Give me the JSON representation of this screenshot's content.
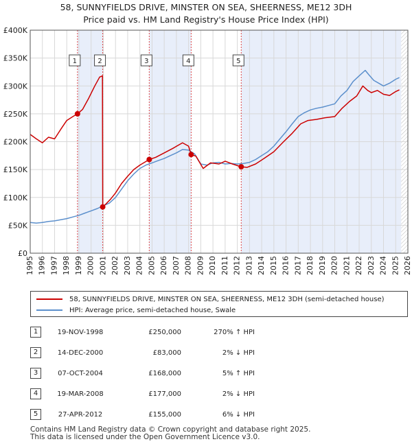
{
  "title_line1": "58, SUNNYFIELDS DRIVE, MINSTER ON SEA, SHEERNESS, ME12 3DH",
  "title_line2": "Price paid vs. HM Land Registry's House Price Index (HPI)",
  "colors": {
    "property": "#cc0000",
    "hpi": "#5b8fcc",
    "band": "#e8eefa",
    "grid": "#d8d8d8",
    "marker_border": "#444444"
  },
  "chart_data": {
    "type": "line",
    "xlim": [
      1995,
      2026
    ],
    "ylim": [
      0,
      400000
    ],
    "x_ticks": [
      "1995",
      "1996",
      "1997",
      "1998",
      "1999",
      "2000",
      "2001",
      "2002",
      "2003",
      "2004",
      "2005",
      "2006",
      "2007",
      "2008",
      "2009",
      "2010",
      "2011",
      "2012",
      "2013",
      "2014",
      "2015",
      "2016",
      "2017",
      "2018",
      "2019",
      "2020",
      "2021",
      "2022",
      "2023",
      "2024",
      "2025",
      "2026"
    ],
    "y_ticks": [
      {
        "value": 0,
        "label": "£0"
      },
      {
        "value": 50000,
        "label": "£50K"
      },
      {
        "value": 100000,
        "label": "£100K"
      },
      {
        "value": 150000,
        "label": "£150K"
      },
      {
        "value": 200000,
        "label": "£200K"
      },
      {
        "value": 250000,
        "label": "£250K"
      },
      {
        "value": 300000,
        "label": "£300K"
      },
      {
        "value": 350000,
        "label": "£350K"
      },
      {
        "value": 400000,
        "label": "£400K"
      }
    ],
    "grid": true,
    "shaded_ranges": [
      [
        1998.88,
        2000.95
      ],
      [
        2004.77,
        2008.21
      ],
      [
        2012.32,
        2025.45
      ]
    ],
    "series": [
      {
        "name": "58, SUNNYFIELDS DRIVE, MINSTER ON SEA, SHEERNESS, ME12 3DH (semi-detached house)",
        "x": [
          1995,
          1995.5,
          1996,
          1996.5,
          1997,
          1997.5,
          1998,
          1998.5,
          1998.88,
          1999.3,
          1999.8,
          2000.3,
          2000.7,
          2000.93,
          2000.95,
          2001.2,
          2001.6,
          2002,
          2002.5,
          2003,
          2003.5,
          2004,
          2004.77,
          2005.3,
          2006,
          2006.7,
          2007.5,
          2008,
          2008.21,
          2008.6,
          2009.2,
          2009.8,
          2010.5,
          2011,
          2011.6,
          2012.32,
          2012.8,
          2013.5,
          2014.2,
          2015,
          2015.8,
          2016.5,
          2017.2,
          2017.8,
          2018.5,
          2019.2,
          2020,
          2020.6,
          2021.2,
          2021.8,
          2022.3,
          2022.7,
          2023,
          2023.5,
          2024,
          2024.5,
          2025,
          2025.3
        ],
        "y": [
          213000,
          205000,
          198000,
          208000,
          205000,
          222000,
          238000,
          245000,
          250000,
          258000,
          278000,
          300000,
          316000,
          318000,
          83000,
          88000,
          97000,
          108000,
          125000,
          138000,
          150000,
          158000,
          168000,
          172000,
          180000,
          188000,
          198000,
          192000,
          177000,
          174000,
          152000,
          162000,
          160000,
          165000,
          160000,
          155000,
          154000,
          160000,
          170000,
          182000,
          200000,
          215000,
          232000,
          238000,
          240000,
          243000,
          245000,
          260000,
          272000,
          282000,
          300000,
          292000,
          288000,
          292000,
          285000,
          283000,
          290000,
          293000
        ]
      },
      {
        "name": "HPI: Average price, semi-detached house, Swale",
        "x": [
          1995,
          1995.5,
          1996,
          1996.5,
          1997,
          1997.5,
          1998,
          1998.5,
          1999,
          1999.5,
          2000,
          2000.5,
          2001,
          2001.5,
          2002,
          2002.5,
          2003,
          2003.5,
          2004,
          2004.5,
          2005,
          2005.5,
          2006,
          2006.5,
          2007,
          2007.5,
          2008,
          2008.5,
          2009,
          2009.5,
          2010,
          2010.5,
          2011,
          2011.5,
          2012,
          2012.5,
          2013,
          2013.5,
          2014,
          2014.5,
          2015,
          2015.5,
          2016,
          2016.5,
          2017,
          2017.5,
          2018,
          2018.5,
          2019,
          2019.5,
          2020,
          2020.5,
          2021,
          2021.5,
          2022,
          2022.5,
          2022.8,
          2023.2,
          2023.6,
          2024,
          2024.5,
          2025,
          2025.3
        ],
        "y": [
          55000,
          54000,
          55000,
          57000,
          58000,
          60000,
          62000,
          65000,
          68000,
          72000,
          76000,
          80000,
          85000,
          90000,
          100000,
          115000,
          130000,
          142000,
          152000,
          158000,
          162000,
          166000,
          170000,
          175000,
          180000,
          186000,
          185000,
          178000,
          160000,
          158000,
          162000,
          163000,
          160000,
          161000,
          160000,
          161000,
          163000,
          168000,
          175000,
          182000,
          192000,
          205000,
          218000,
          232000,
          245000,
          252000,
          257000,
          260000,
          262000,
          265000,
          268000,
          282000,
          292000,
          308000,
          318000,
          328000,
          320000,
          310000,
          305000,
          300000,
          305000,
          312000,
          315000
        ]
      }
    ],
    "sale_markers": [
      {
        "label": "1",
        "x": 1998.88,
        "y": 250000
      },
      {
        "label": "2",
        "x": 2000.95,
        "y": 83000
      },
      {
        "label": "3",
        "x": 2004.77,
        "y": 168000
      },
      {
        "label": "4",
        "x": 2008.21,
        "y": 177000
      },
      {
        "label": "5",
        "x": 2012.32,
        "y": 155000
      }
    ]
  },
  "legend": {
    "property_label": "58, SUNNYFIELDS DRIVE, MINSTER ON SEA, SHEERNESS, ME12 3DH (semi-detached house)",
    "hpi_label": "HPI: Average price, semi-detached house, Swale"
  },
  "sales": [
    {
      "num": "1",
      "date": "19-NOV-1998",
      "price": "£250,000",
      "hpi": "270% ↑ HPI"
    },
    {
      "num": "2",
      "date": "14-DEC-2000",
      "price": "£83,000",
      "hpi": "2% ↓ HPI"
    },
    {
      "num": "3",
      "date": "07-OCT-2004",
      "price": "£168,000",
      "hpi": "5% ↑ HPI"
    },
    {
      "num": "4",
      "date": "19-MAR-2008",
      "price": "£177,000",
      "hpi": "2% ↓ HPI"
    },
    {
      "num": "5",
      "date": "27-APR-2012",
      "price": "£155,000",
      "hpi": "6% ↓ HPI"
    }
  ],
  "footer_line1": "Contains HM Land Registry data © Crown copyright and database right 2025.",
  "footer_line2": "This data is licensed under the Open Government Licence v3.0."
}
